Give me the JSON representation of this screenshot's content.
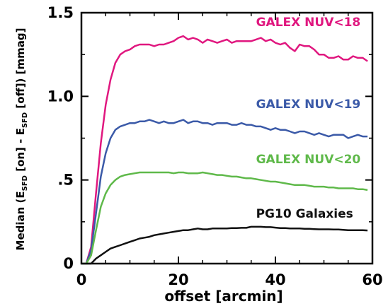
{
  "chart_data": {
    "type": "line",
    "xlabel": "offset [arcmin]",
    "ylabel": {
      "prefix": "Median (E",
      "sub1": "SFD",
      "middle": " [on] - E",
      "sub2": "SFD",
      "suffix": " [off]) [mmag]"
    },
    "xlim": [
      0,
      60
    ],
    "ylim": [
      0,
      1.5
    ],
    "x_ticks": [
      {
        "value": 0,
        "label": "0"
      },
      {
        "value": 20,
        "label": "20"
      },
      {
        "value": 40,
        "label": "40"
      },
      {
        "value": 60,
        "label": "60"
      }
    ],
    "y_ticks": [
      {
        "value": 0,
        "label": "0"
      },
      {
        "value": 0.5,
        "label": ".5"
      },
      {
        "value": 1.0,
        "label": "1.0"
      },
      {
        "value": 1.5,
        "label": "1.5"
      }
    ],
    "grid": false,
    "series": [
      {
        "name": "GALEX NUV<18",
        "color": "#e0177f",
        "label_pos": [
          36,
          1.42
        ],
        "x": [
          0,
          1,
          2,
          3,
          4,
          5,
          6,
          7,
          8,
          9,
          10,
          11,
          12,
          13,
          14,
          15,
          16,
          17,
          18,
          19,
          20,
          21,
          22,
          23,
          24,
          25,
          26,
          27,
          28,
          29,
          30,
          31,
          32,
          33,
          34,
          35,
          36,
          37,
          38,
          39,
          40,
          41,
          42,
          43,
          44,
          45,
          46,
          47,
          48,
          49,
          50,
          51,
          52,
          53,
          54,
          55,
          56,
          57,
          58,
          59
        ],
        "y": [
          0,
          0,
          0.1,
          0.42,
          0.72,
          0.95,
          1.1,
          1.2,
          1.25,
          1.27,
          1.28,
          1.3,
          1.31,
          1.31,
          1.31,
          1.3,
          1.31,
          1.31,
          1.32,
          1.33,
          1.35,
          1.36,
          1.34,
          1.35,
          1.34,
          1.32,
          1.34,
          1.33,
          1.32,
          1.33,
          1.34,
          1.32,
          1.33,
          1.33,
          1.33,
          1.33,
          1.34,
          1.35,
          1.33,
          1.34,
          1.32,
          1.31,
          1.32,
          1.29,
          1.27,
          1.31,
          1.3,
          1.3,
          1.28,
          1.25,
          1.25,
          1.23,
          1.23,
          1.24,
          1.22,
          1.22,
          1.24,
          1.23,
          1.23,
          1.21
        ]
      },
      {
        "name": "GALEX NUV<19",
        "color": "#3b5aa8",
        "label_pos": [
          36,
          0.93
        ],
        "x": [
          0,
          1,
          2,
          3,
          4,
          5,
          6,
          7,
          8,
          9,
          10,
          11,
          12,
          13,
          14,
          15,
          16,
          17,
          18,
          19,
          20,
          21,
          22,
          23,
          24,
          25,
          26,
          27,
          28,
          29,
          30,
          31,
          32,
          33,
          34,
          35,
          36,
          37,
          38,
          39,
          40,
          41,
          42,
          43,
          44,
          45,
          46,
          47,
          48,
          49,
          50,
          51,
          52,
          53,
          54,
          55,
          56,
          57,
          58,
          59
        ],
        "y": [
          0,
          0,
          0.08,
          0.3,
          0.52,
          0.66,
          0.75,
          0.8,
          0.82,
          0.83,
          0.84,
          0.84,
          0.85,
          0.85,
          0.86,
          0.85,
          0.84,
          0.85,
          0.84,
          0.84,
          0.85,
          0.86,
          0.84,
          0.85,
          0.85,
          0.84,
          0.84,
          0.83,
          0.84,
          0.84,
          0.84,
          0.83,
          0.83,
          0.84,
          0.83,
          0.83,
          0.82,
          0.82,
          0.81,
          0.8,
          0.81,
          0.8,
          0.8,
          0.79,
          0.78,
          0.79,
          0.79,
          0.78,
          0.77,
          0.78,
          0.77,
          0.76,
          0.77,
          0.77,
          0.77,
          0.75,
          0.76,
          0.77,
          0.76,
          0.76
        ]
      },
      {
        "name": "GALEX NUV<20",
        "color": "#5fb94a",
        "label_pos": [
          36,
          0.6
        ],
        "x": [
          0,
          1,
          2,
          3,
          4,
          5,
          6,
          7,
          8,
          9,
          10,
          11,
          12,
          13,
          14,
          15,
          16,
          17,
          18,
          19,
          20,
          21,
          22,
          23,
          24,
          25,
          26,
          27,
          28,
          29,
          30,
          31,
          32,
          33,
          34,
          35,
          36,
          37,
          38,
          39,
          40,
          41,
          42,
          43,
          44,
          45,
          46,
          47,
          48,
          49,
          50,
          51,
          52,
          53,
          54,
          55,
          56,
          57,
          58,
          59
        ],
        "y": [
          0,
          0,
          0.05,
          0.2,
          0.34,
          0.42,
          0.47,
          0.5,
          0.52,
          0.53,
          0.535,
          0.54,
          0.545,
          0.545,
          0.545,
          0.545,
          0.545,
          0.545,
          0.545,
          0.54,
          0.545,
          0.545,
          0.54,
          0.54,
          0.54,
          0.545,
          0.54,
          0.535,
          0.53,
          0.53,
          0.525,
          0.52,
          0.52,
          0.515,
          0.51,
          0.51,
          0.505,
          0.5,
          0.495,
          0.49,
          0.49,
          0.485,
          0.48,
          0.475,
          0.47,
          0.47,
          0.47,
          0.465,
          0.46,
          0.46,
          0.46,
          0.455,
          0.455,
          0.45,
          0.45,
          0.45,
          0.45,
          0.445,
          0.445,
          0.44
        ]
      },
      {
        "name": "PG10 Galaxies",
        "color": "#111111",
        "label_pos": [
          36,
          0.275
        ],
        "x": [
          0,
          1,
          2,
          3,
          4,
          5,
          6,
          7,
          8,
          9,
          10,
          11,
          12,
          13,
          14,
          15,
          16,
          17,
          18,
          19,
          20,
          21,
          22,
          23,
          24,
          25,
          26,
          27,
          28,
          29,
          30,
          31,
          32,
          33,
          34,
          35,
          36,
          37,
          38,
          39,
          40,
          41,
          42,
          43,
          44,
          45,
          46,
          47,
          48,
          49,
          50,
          51,
          52,
          53,
          54,
          55,
          56,
          57,
          58,
          59
        ],
        "y": [
          0,
          0,
          0,
          0.03,
          0.05,
          0.07,
          0.09,
          0.1,
          0.11,
          0.12,
          0.13,
          0.14,
          0.15,
          0.155,
          0.16,
          0.17,
          0.175,
          0.18,
          0.185,
          0.19,
          0.195,
          0.2,
          0.2,
          0.205,
          0.21,
          0.205,
          0.205,
          0.21,
          0.21,
          0.21,
          0.21,
          0.212,
          0.212,
          0.214,
          0.214,
          0.22,
          0.22,
          0.22,
          0.218,
          0.218,
          0.215,
          0.212,
          0.212,
          0.21,
          0.21,
          0.21,
          0.208,
          0.208,
          0.206,
          0.205,
          0.205,
          0.205,
          0.204,
          0.204,
          0.202,
          0.2,
          0.2,
          0.2,
          0.2,
          0.198
        ]
      }
    ]
  }
}
